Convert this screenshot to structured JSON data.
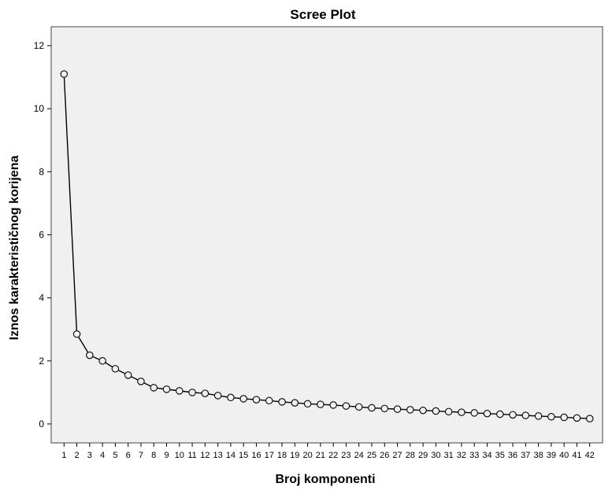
{
  "chart_data": {
    "type": "line",
    "title": "Scree Plot",
    "xlabel": "Broj komponenti",
    "ylabel": "Iznos karakterističnog korijena",
    "x": [
      1,
      2,
      3,
      4,
      5,
      6,
      7,
      8,
      9,
      10,
      11,
      12,
      13,
      14,
      15,
      16,
      17,
      18,
      19,
      20,
      21,
      22,
      23,
      24,
      25,
      26,
      27,
      28,
      29,
      30,
      31,
      32,
      33,
      34,
      35,
      36,
      37,
      38,
      39,
      40,
      41,
      42
    ],
    "series": [
      {
        "values": [
          11.1,
          2.85,
          2.18,
          2.0,
          1.75,
          1.55,
          1.35,
          1.15,
          1.1,
          1.05,
          1.0,
          0.97,
          0.9,
          0.84,
          0.8,
          0.77,
          0.74,
          0.7,
          0.67,
          0.64,
          0.62,
          0.6,
          0.57,
          0.54,
          0.51,
          0.49,
          0.47,
          0.45,
          0.43,
          0.41,
          0.39,
          0.37,
          0.35,
          0.33,
          0.31,
          0.29,
          0.27,
          0.25,
          0.23,
          0.21,
          0.19,
          0.17
        ]
      }
    ],
    "ylim": [
      -0.6,
      12.6
    ],
    "yticks": [
      0,
      2,
      4,
      6,
      8,
      10,
      12
    ],
    "xlim": [
      0,
      43
    ],
    "grid": false,
    "colors": {
      "plot_background": "#f0f0f0",
      "line": "#000000",
      "marker_fill": "#f0f0f0"
    }
  }
}
